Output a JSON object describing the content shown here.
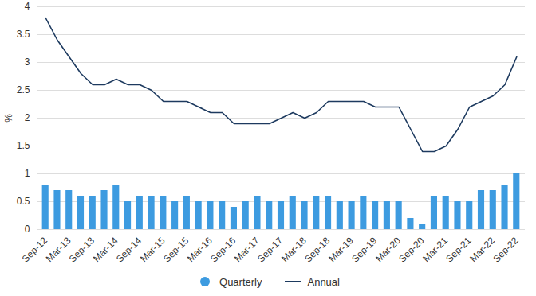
{
  "chart_data": {
    "type": "bar",
    "categories": [
      "Sep-12",
      null,
      "Mar-13",
      null,
      "Sep-13",
      null,
      "Mar-14",
      null,
      "Sep-14",
      null,
      "Mar-15",
      null,
      "Sep-15",
      null,
      "Mar-16",
      null,
      "Sep-16",
      null,
      "Mar-17",
      null,
      "Sep-17",
      null,
      "Mar-18",
      null,
      "Sep-18",
      null,
      "Mar-19",
      null,
      "Sep-19",
      null,
      "Mar-20",
      null,
      "Sep-20",
      null,
      "Mar-21",
      null,
      "Sep-21",
      null,
      "Mar-22",
      null,
      "Sep-22"
    ],
    "series": [
      {
        "name": "Quarterly",
        "type": "bar",
        "color": "#3d9be0",
        "marker": "circle",
        "values": [
          0.8,
          0.7,
          0.7,
          0.6,
          0.6,
          0.7,
          0.8,
          0.5,
          0.6,
          0.6,
          0.6,
          0.5,
          0.6,
          0.5,
          0.5,
          0.5,
          0.4,
          0.5,
          0.6,
          0.5,
          0.5,
          0.6,
          0.5,
          0.6,
          0.6,
          0.5,
          0.5,
          0.6,
          0.5,
          0.5,
          0.5,
          0.2,
          0.1,
          0.6,
          0.6,
          0.5,
          0.5,
          0.7,
          0.7,
          0.8,
          1.0
        ]
      },
      {
        "name": "Annual",
        "type": "line",
        "color": "#1d3a5f",
        "line_style": "solid",
        "values": [
          3.8,
          3.4,
          3.1,
          2.8,
          2.6,
          2.6,
          2.7,
          2.6,
          2.6,
          2.5,
          2.3,
          2.3,
          2.3,
          2.2,
          2.1,
          2.1,
          1.9,
          1.9,
          1.9,
          1.9,
          2.0,
          2.1,
          2.0,
          2.1,
          2.3,
          2.3,
          2.3,
          2.3,
          2.2,
          2.2,
          2.2,
          1.8,
          1.4,
          1.4,
          1.5,
          1.8,
          2.2,
          2.3,
          2.4,
          2.6,
          3.1
        ]
      }
    ],
    "y_label": "%",
    "ylim": [
      0,
      4
    ],
    "yticks": [
      0,
      0.5,
      1,
      1.5,
      2,
      2.5,
      3,
      3.5,
      4
    ],
    "grid": true,
    "legend": "bottom"
  }
}
